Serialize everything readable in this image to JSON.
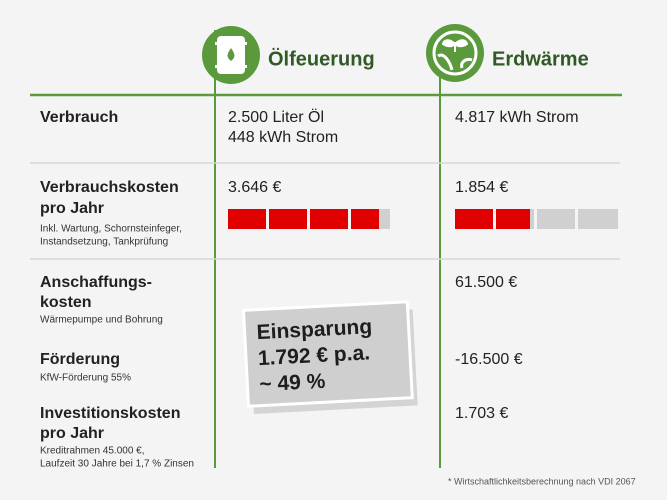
{
  "header": {
    "columns": [
      "Ölfeuerung",
      "Erdwärme"
    ]
  },
  "rows": [
    {
      "label": [
        "Verbrauch"
      ],
      "oelfeuerung": [
        "2.500 Liter Öl",
        "448 kWh Strom"
      ],
      "erdwaerme": [
        "4.817 kWh Strom"
      ]
    },
    {
      "label": [
        "Verbrauchskosten",
        "pro Jahr"
      ],
      "note": [
        "Inkl. Wartung, Schornsteinfeger,",
        "Instandsetzung, Tankprüfung"
      ],
      "oelfeuerung": [
        "3.646 €"
      ],
      "erdwaerme": [
        "1.854 €"
      ]
    },
    {
      "label": [
        "Anschaffungs-",
        "kosten"
      ],
      "note": [
        "Wärmepumpe und Bohrung"
      ],
      "erdwaerme": [
        "61.500 €"
      ]
    },
    {
      "label": [
        "Förderung"
      ],
      "note": [
        "KfW-Förderung 55%"
      ],
      "erdwaerme": [
        "-16.500 €"
      ]
    },
    {
      "label": [
        "Investitionskosten",
        "pro Jahr"
      ],
      "note": [
        "Kreditrahmen 45.000 €,",
        "Laufzeit 30 Jahre bei 1,7 % Zinsen"
      ],
      "erdwaerme": [
        "1.703 €"
      ]
    }
  ],
  "savings": [
    "Einsparung",
    "1.792 € p.a.",
    "~ 49 %"
  ],
  "footnote": "* Wirtschaftlichkeitsberechnung nach VDI 2067"
}
